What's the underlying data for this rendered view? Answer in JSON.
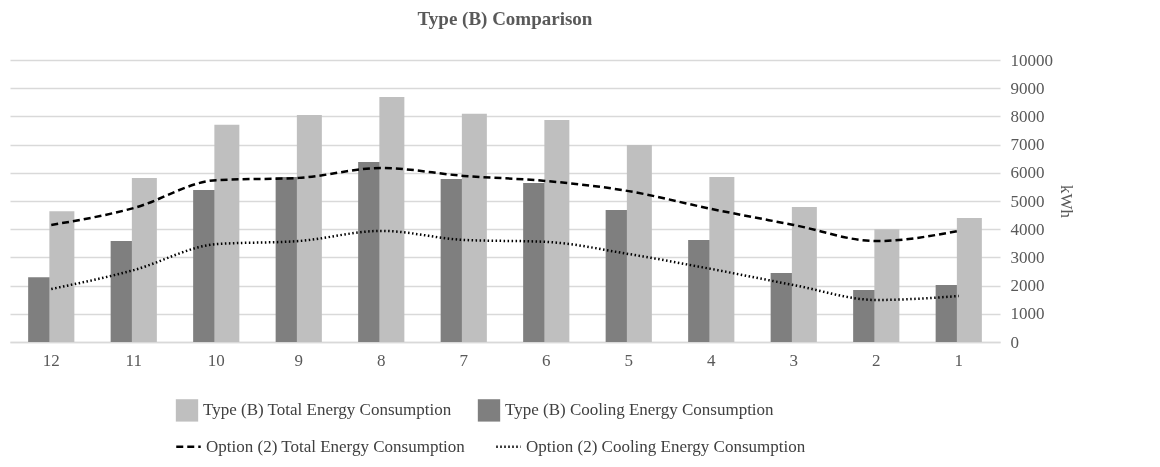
{
  "chart_data": {
    "type": "bar",
    "title": "Type (B) Comparison",
    "y2label": "kWh",
    "categories": [
      "12",
      "11",
      "10",
      "9",
      "8",
      "7",
      "6",
      "5",
      "4",
      "3",
      "2",
      "1"
    ],
    "series": [
      {
        "name": "Type (B) Cooling Energy Consumption",
        "axis": "y2",
        "color": "#7f7f7f",
        "values": [
          2300,
          3580,
          5390,
          5850,
          6380,
          5780,
          5640,
          4680,
          3620,
          2450,
          1840,
          2020
        ]
      },
      {
        "name": "Type (B) Total Energy Consumption",
        "axis": "y2",
        "color": "#bfbfbf",
        "values": [
          4640,
          5820,
          7700,
          8050,
          8690,
          8090,
          7870,
          6990,
          5850,
          4790,
          4000,
          4400
        ]
      },
      {
        "name": "Option (2) Total Energy Consumption",
        "type": "line",
        "axis": "y2",
        "color": "#000000",
        "line_style": "dashed",
        "values": [
          4150,
          4750,
          5740,
          5820,
          6170,
          5890,
          5710,
          5350,
          4720,
          4150,
          3580,
          3940
        ]
      },
      {
        "name": "Option (2) Cooling Energy Consumption",
        "type": "line",
        "axis": "y2",
        "color": "#000000",
        "line_style": "dotted",
        "values": [
          1880,
          2550,
          3470,
          3580,
          3940,
          3620,
          3550,
          3120,
          2590,
          2020,
          1490,
          1630
        ]
      }
    ],
    "y2lim": [
      0,
      10000
    ],
    "y2ticks": [
      0,
      1000,
      2000,
      3000,
      4000,
      5000,
      6000,
      7000,
      8000,
      9000,
      10000
    ],
    "grid": "y",
    "legend": "bottom",
    "marker": "none"
  }
}
